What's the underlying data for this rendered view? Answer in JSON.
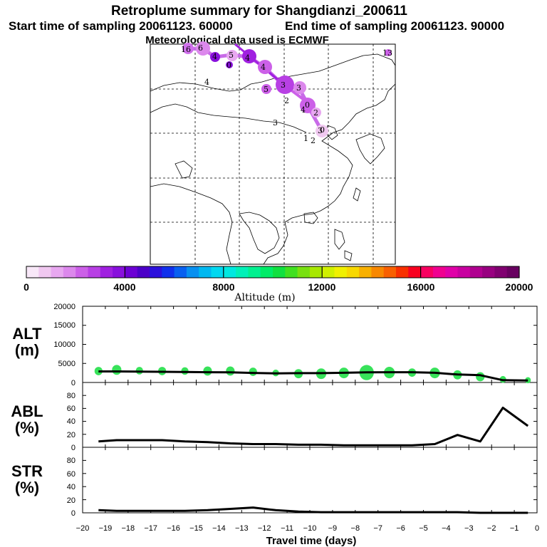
{
  "header": {
    "title": "Retroplume summary for Shangdianzi_200611",
    "start_label": "Start time of sampling 20061123. 60000",
    "end_label": "End time of sampling 20061123. 90000",
    "met_label": "Meteorological data used is ECMWF"
  },
  "map": {
    "plume_labels": [
      "16",
      "6",
      "4",
      "5",
      "4",
      "4",
      "0",
      "4",
      "5",
      "3",
      "3",
      "3",
      "2",
      "0",
      "2",
      "4",
      "3",
      "1",
      "2",
      "0",
      "13"
    ]
  },
  "colorbar": {
    "label": "Altitude (m)",
    "ticks": [
      "0",
      "4000",
      "8000",
      "12000",
      "16000",
      "20000"
    ],
    "colors": [
      "#f8e8f8",
      "#f0c8f0",
      "#e8a8f0",
      "#dc88ec",
      "#cc60e8",
      "#b840e4",
      "#a020e0",
      "#8810dc",
      "#6c00d4",
      "#4c00c8",
      "#2c10dc",
      "#1030ec",
      "#0860f0",
      "#0890f0",
      "#00b8f0",
      "#00d8f0",
      "#00e8e0",
      "#00f0b8",
      "#00f090",
      "#00ec68",
      "#10e040",
      "#40e020",
      "#78e010",
      "#a8e800",
      "#d0f000",
      "#f0f000",
      "#f8d800",
      "#f8b000",
      "#f88800",
      "#f86000",
      "#f83000",
      "#f80020",
      "#f80060",
      "#f00090",
      "#e000a8",
      "#c800a0",
      "#b00090",
      "#980080",
      "#800070",
      "#680060"
    ]
  },
  "chart_data": [
    {
      "type": "scatter+line",
      "ylabel": "ALT (m)",
      "ylabel_line1": "ALT",
      "ylabel_line2": "(m)",
      "xlabel": "Travel time (days)",
      "xlim": [
        -20,
        0
      ],
      "ylim": [
        0,
        20000
      ],
      "yticks": [
        "20000",
        "15000",
        "10000",
        "5000",
        "0"
      ],
      "line": {
        "x": [
          -19.3,
          -18.5,
          -17.5,
          -16.5,
          -15.5,
          -14.5,
          -13.5,
          -12.5,
          -11.5,
          -10.5,
          -9.5,
          -8.5,
          -7.5,
          -6.5,
          -5.5,
          -4.5,
          -3.5,
          -2.5,
          -1.5,
          -0.4
        ],
        "y": [
          2900,
          2900,
          2850,
          2800,
          2750,
          2700,
          2650,
          2500,
          2400,
          2450,
          2450,
          2550,
          2650,
          2700,
          2700,
          2550,
          2100,
          1900,
          600,
          500
        ]
      },
      "bubbles": {
        "x": [
          -19.3,
          -18.5,
          -17.5,
          -16.5,
          -15.5,
          -14.5,
          -13.5,
          -12.5,
          -11.5,
          -10.5,
          -9.5,
          -8.5,
          -7.5,
          -6.5,
          -5.5,
          -4.5,
          -3.5,
          -2.5,
          -1.5,
          -0.4
        ],
        "y": [
          3000,
          3300,
          3100,
          3000,
          3000,
          3000,
          3000,
          2800,
          2500,
          2300,
          2300,
          2500,
          2600,
          2600,
          2600,
          2500,
          2000,
          1500,
          800,
          600
        ],
        "spread_m": [
          1100,
          1300,
          1000,
          1100,
          1000,
          1200,
          1200,
          1100,
          900,
          1200,
          1400,
          1400,
          2000,
          1500,
          1100,
          1400,
          1200,
          1200,
          900,
          800
        ]
      }
    },
    {
      "type": "line",
      "ylabel": "ABL (%)",
      "ylabel_line1": "ABL",
      "ylabel_line2": "(%)",
      "xlim": [
        -20,
        0
      ],
      "ylim": [
        0,
        100
      ],
      "yticks": [
        "80",
        "60",
        "40",
        "20",
        "0"
      ],
      "x": [
        -19.3,
        -18.5,
        -17.5,
        -16.5,
        -15.5,
        -14.5,
        -13.5,
        -12.5,
        -11.5,
        -10.5,
        -9.5,
        -8.5,
        -7.5,
        -6.5,
        -5.5,
        -4.5,
        -3.5,
        -2.5,
        -1.5,
        -0.4
      ],
      "y": [
        9,
        11,
        11,
        11,
        9,
        8,
        6,
        5,
        5,
        4,
        4,
        3,
        3,
        3,
        3,
        5,
        19,
        9,
        61,
        33
      ]
    },
    {
      "type": "line",
      "ylabel": "STR (%)",
      "ylabel_line1": "STR",
      "ylabel_line2": "(%)",
      "xlim": [
        -20,
        0
      ],
      "ylim": [
        0,
        100
      ],
      "yticks": [
        "80",
        "60",
        "40",
        "20",
        "0"
      ],
      "xticks": [
        "−20",
        "−19",
        "−18",
        "−17",
        "−16",
        "−15",
        "−14",
        "−13",
        "−12",
        "−11",
        "−10",
        "−9",
        "−8",
        "−7",
        "−6",
        "−5",
        "−4",
        "−3",
        "−2",
        "−1",
        "0"
      ],
      "x": [
        -19.3,
        -18.5,
        -17.5,
        -16.5,
        -15.5,
        -14.5,
        -13.5,
        -12.5,
        -11.5,
        -10.5,
        -9.5,
        -8.5,
        -7.5,
        -6.5,
        -5.5,
        -4.5,
        -3.5,
        -2.5,
        -1.5,
        -0.4
      ],
      "y": [
        4,
        3,
        3,
        3,
        3,
        4,
        6,
        8,
        4,
        2,
        1,
        1,
        1,
        1,
        1,
        1,
        1,
        0,
        0,
        0
      ]
    }
  ]
}
